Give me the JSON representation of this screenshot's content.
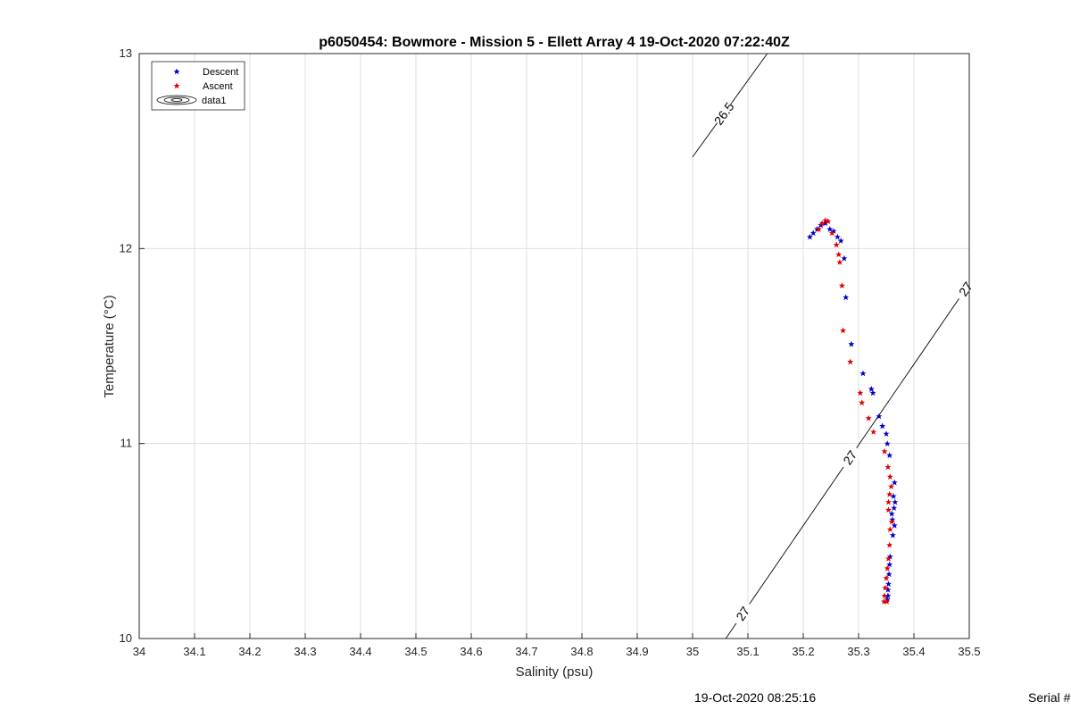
{
  "chart_data": {
    "type": "scatter",
    "title": "p6050454: Bowmore - Mission 5 - Ellett Array 4 19-Oct-2020 07:22:40Z",
    "xlabel": "Salinity (psu)",
    "ylabel": "Temperature (°C)",
    "xlim": [
      34,
      35.5
    ],
    "ylim": [
      10,
      13
    ],
    "xticks": [
      "34",
      "34.1",
      "34.2",
      "34.3",
      "34.4",
      "34.5",
      "34.6",
      "34.7",
      "34.8",
      "34.9",
      "35",
      "35.1",
      "35.2",
      "35.3",
      "35.4",
      "35.5"
    ],
    "yticks": [
      "10",
      "11",
      "12",
      "13"
    ],
    "grid": true,
    "legend_position": "top-left",
    "legend": [
      "Descent",
      "Ascent",
      "data1"
    ],
    "series": [
      {
        "name": "Descent",
        "color": "#0000cc",
        "marker": "star",
        "points": [
          [
            35.212,
            12.06
          ],
          [
            35.218,
            12.08
          ],
          [
            35.225,
            12.1
          ],
          [
            35.232,
            12.12
          ],
          [
            35.24,
            12.13
          ],
          [
            35.248,
            12.1
          ],
          [
            35.255,
            12.09
          ],
          [
            35.262,
            12.06
          ],
          [
            35.268,
            12.04
          ],
          [
            35.274,
            11.95
          ],
          [
            35.277,
            11.75
          ],
          [
            35.287,
            11.51
          ],
          [
            35.308,
            11.36
          ],
          [
            35.323,
            11.28
          ],
          [
            35.326,
            11.26
          ],
          [
            35.337,
            11.14
          ],
          [
            35.343,
            11.09
          ],
          [
            35.35,
            11.05
          ],
          [
            35.352,
            11.0
          ],
          [
            35.356,
            10.94
          ],
          [
            35.365,
            10.8
          ],
          [
            35.363,
            10.73
          ],
          [
            35.366,
            10.7
          ],
          [
            35.364,
            10.67
          ],
          [
            35.36,
            10.64
          ],
          [
            35.361,
            10.61
          ],
          [
            35.365,
            10.58
          ],
          [
            35.362,
            10.53
          ],
          [
            35.357,
            10.42
          ],
          [
            35.356,
            10.38
          ],
          [
            35.355,
            10.33
          ],
          [
            35.354,
            10.28
          ],
          [
            35.353,
            10.25
          ],
          [
            35.353,
            10.22
          ],
          [
            35.352,
            10.2
          ]
        ]
      },
      {
        "name": "Ascent",
        "color": "#dd0000",
        "marker": "star",
        "points": [
          [
            35.228,
            12.1
          ],
          [
            35.234,
            12.13
          ],
          [
            35.24,
            12.145
          ],
          [
            35.245,
            12.14
          ],
          [
            35.252,
            12.08
          ],
          [
            35.26,
            12.02
          ],
          [
            35.264,
            11.97
          ],
          [
            35.266,
            11.93
          ],
          [
            35.27,
            11.81
          ],
          [
            35.272,
            11.58
          ],
          [
            35.285,
            11.42
          ],
          [
            35.303,
            11.26
          ],
          [
            35.306,
            11.21
          ],
          [
            35.318,
            11.13
          ],
          [
            35.327,
            11.06
          ],
          [
            35.347,
            10.96
          ],
          [
            35.353,
            10.88
          ],
          [
            35.357,
            10.83
          ],
          [
            35.359,
            10.78
          ],
          [
            35.356,
            10.74
          ],
          [
            35.354,
            10.7
          ],
          [
            35.354,
            10.66
          ],
          [
            35.36,
            10.6
          ],
          [
            35.357,
            10.56
          ],
          [
            35.356,
            10.48
          ],
          [
            35.354,
            10.41
          ],
          [
            35.352,
            10.36
          ],
          [
            35.35,
            10.31
          ],
          [
            35.348,
            10.26
          ],
          [
            35.347,
            10.22
          ],
          [
            35.346,
            10.19
          ],
          [
            35.351,
            10.19
          ]
        ]
      }
    ],
    "contours": [
      {
        "label": "26.5",
        "line": [
          [
            35.0,
            12.47
          ],
          [
            35.135,
            13.0
          ]
        ]
      },
      {
        "label": "27",
        "line": [
          [
            35.06,
            10.0
          ],
          [
            35.5,
            11.82
          ]
        ]
      }
    ]
  },
  "footer": {
    "timestamp": "19-Oct-2020 08:25:16",
    "serial": "Serial #"
  }
}
